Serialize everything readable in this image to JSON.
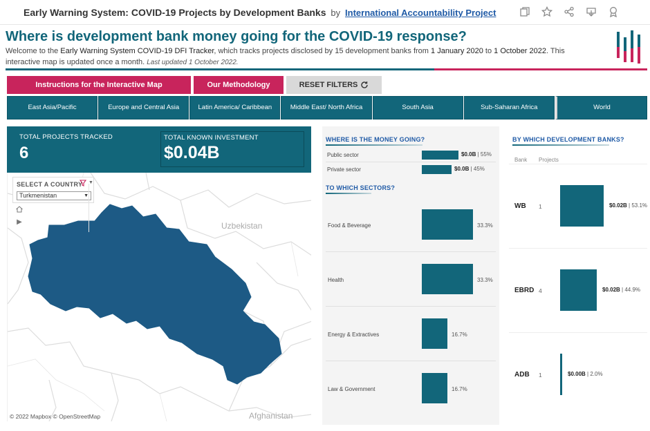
{
  "toolbar": {
    "title": "Early Warning System: COVID-19 Projects by Development Banks",
    "by": "by",
    "author": "International Accountability Project",
    "icons": [
      "copy-icon",
      "star-icon",
      "share-icon",
      "download-icon",
      "award-icon"
    ]
  },
  "header": {
    "headline": "Where is development bank money going for the COVID-19 response?",
    "intro_1": "Welcome to the ",
    "intro_bold_1": "Early Warning System COVID-19 DFI Tracker",
    "intro_2": ", which tracks projects disclosed by 15 development banks from ",
    "intro_bold_2": "1 January 2020",
    "intro_3": " to ",
    "intro_bold_3": "1 October 2022",
    "intro_4": ".  This interactive map is updated once a month. ",
    "last_updated": "Last updated  1 October 2022."
  },
  "buttons": {
    "instructions": "Instructions for the Interactive Map",
    "methodology": "Our Methodology",
    "reset": "RESET FILTERS"
  },
  "regions": [
    "East Asia/Pacific",
    "Europe and Central Asia",
    "Latin America/ Caribbean",
    "Middle East/ North Africa",
    "South Asia",
    "Sub-Saharan Africa",
    "World"
  ],
  "kpis": {
    "projects_label": "TOTAL PROJECTS TRACKED",
    "projects_value": "6",
    "investment_label": "TOTAL KNOWN INVESTMENT",
    "investment_value": "$0.04B"
  },
  "country_filter": {
    "label": "SELECT A COUNTRY",
    "value": "Turkmenistan"
  },
  "map": {
    "labels": [
      "Uzbekistan",
      "Afghanistan"
    ],
    "attribution": "© 2022 Mapbox  © OpenStreetMap",
    "highlight_color": "#1d5a85"
  },
  "money": {
    "title": "WHERE IS THE MONEY GOING?",
    "rows": [
      {
        "label": "Public sector",
        "amount": "$0.0B",
        "pct": "55%",
        "share": 0.55
      },
      {
        "label": "Private sector",
        "amount": "$0.0B",
        "pct": "45%",
        "share": 0.45
      }
    ]
  },
  "sectors": {
    "title": "TO WHICH SECTORS?",
    "rows": [
      {
        "label": "Food & Beverage",
        "pct": "33.3%",
        "share": 0.333
      },
      {
        "label": "Health",
        "pct": "33.3%",
        "share": 0.333
      },
      {
        "label": "Energy & Extractives",
        "pct": "16.7%",
        "share": 0.167
      },
      {
        "label": "Law & Government",
        "pct": "16.7%",
        "share": 0.167
      }
    ]
  },
  "banks": {
    "title": "BY WHICH DEVELOPMENT BANKS?",
    "col_bank": "Bank",
    "col_projects": "Projects",
    "rows": [
      {
        "bank": "WB",
        "projects": "1",
        "amount": "$0.02B",
        "pct": "53.1%",
        "share": 0.531
      },
      {
        "bank": "EBRD",
        "projects": "4",
        "amount": "$0.02B",
        "pct": "44.9%",
        "share": 0.449
      },
      {
        "bank": "ADB",
        "projects": "1",
        "amount": "$0.00B",
        "pct": "2.0%",
        "share": 0.02
      }
    ]
  },
  "colors": {
    "teal": "#12667a",
    "pink": "#c8245c",
    "blue_title": "#1f5aa6"
  }
}
